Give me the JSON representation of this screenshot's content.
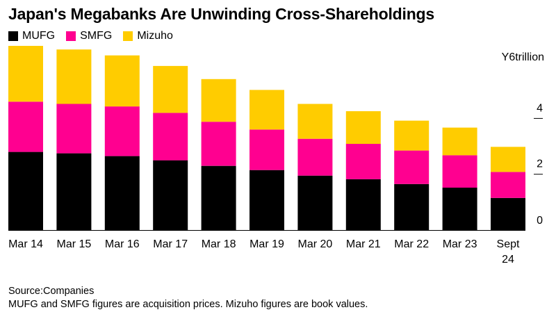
{
  "title": "Japan's Megabanks Are Unwinding Cross-Shareholdings",
  "colors": {
    "MUFG": "#000000",
    "SMFG": "#ff0090",
    "Mizuho": "#ffcc00"
  },
  "legend": [
    {
      "name": "MUFG",
      "color": "#000000"
    },
    {
      "name": "SMFG",
      "color": "#ff0090"
    },
    {
      "name": "Mizuho",
      "color": "#ffcc00"
    }
  ],
  "chart_data": {
    "type": "bar",
    "stacked": true,
    "title": "Japan's Megabanks Are Unwinding Cross-Shareholdings",
    "unit_label": "Y6trillion",
    "categories": [
      "Mar 14",
      "Mar 15",
      "Mar 16",
      "Mar 17",
      "Mar 18",
      "Mar 19",
      "Mar 20",
      "Mar 21",
      "Mar 22",
      "Mar 23",
      "Sept 24"
    ],
    "series": [
      {
        "name": "MUFG",
        "color": "#000000",
        "values": [
          2.8,
          2.75,
          2.65,
          2.5,
          2.3,
          2.15,
          1.95,
          1.82,
          1.65,
          1.52,
          1.15
        ]
      },
      {
        "name": "SMFG",
        "color": "#ff0090",
        "values": [
          1.8,
          1.77,
          1.78,
          1.7,
          1.58,
          1.45,
          1.32,
          1.27,
          1.2,
          1.16,
          0.93
        ]
      },
      {
        "name": "Mizuho",
        "color": "#ffcc00",
        "values": [
          2.0,
          1.95,
          1.83,
          1.68,
          1.53,
          1.42,
          1.25,
          1.17,
          1.07,
          0.99,
          0.9
        ]
      }
    ],
    "ylim": [
      0,
      6.6
    ],
    "yticks": [
      0,
      2,
      4
    ],
    "grid": false,
    "legend_position": "top-left"
  },
  "footer": {
    "source": "Source:Companies",
    "note": "MUFG and SMFG figures are acquisition prices. Mizuho figures are book values."
  }
}
